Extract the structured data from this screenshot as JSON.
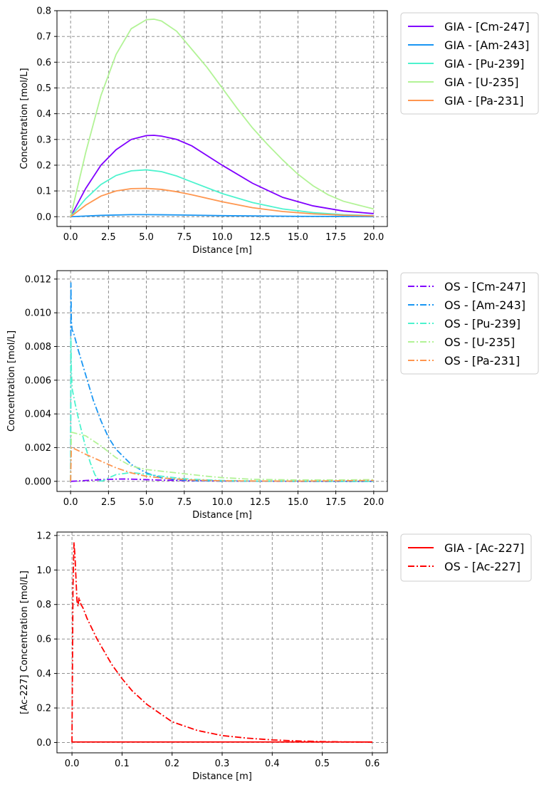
{
  "chart_data": [
    {
      "type": "line",
      "xlabel": "Distance [m]",
      "ylabel": "Concentration [mol/L]",
      "xlim": [
        -0.9,
        20.9
      ],
      "ylim": [
        -0.038,
        0.8
      ],
      "xticks": [
        0,
        2.5,
        5,
        7.5,
        10,
        12.5,
        15,
        17.5,
        20
      ],
      "xtick_labels": [
        "0.0",
        "2.5",
        "5.0",
        "7.5",
        "10.0",
        "12.5",
        "15.0",
        "17.5",
        "20.0"
      ],
      "yticks": [
        0,
        0.1,
        0.2,
        0.3,
        0.4,
        0.5,
        0.6,
        0.7,
        0.8
      ],
      "ytick_labels": [
        "0.0",
        "0.1",
        "0.2",
        "0.3",
        "0.4",
        "0.5",
        "0.6",
        "0.7",
        "0.8"
      ],
      "grid": true,
      "legend_position": "outside-top-right",
      "series": [
        {
          "name": "GIA - [Cm-247]",
          "color": "#8000ff",
          "style": "solid",
          "x": [
            0,
            1,
            2,
            3,
            4,
            5,
            5.5,
            6,
            7,
            8,
            10,
            12,
            14,
            16,
            18,
            20
          ],
          "y": [
            0,
            0.11,
            0.2,
            0.26,
            0.3,
            0.315,
            0.316,
            0.313,
            0.3,
            0.275,
            0.2,
            0.13,
            0.075,
            0.042,
            0.022,
            0.012
          ]
        },
        {
          "name": "GIA - [Am-243]",
          "color": "#1996f3",
          "style": "solid",
          "x": [
            0,
            2,
            4,
            5,
            6,
            8,
            10,
            15,
            20
          ],
          "y": [
            0,
            0.005,
            0.008,
            0.008,
            0.0075,
            0.006,
            0.004,
            0.0015,
            0.0005
          ]
        },
        {
          "name": "GIA - [Pu-239]",
          "color": "#4df3ce",
          "style": "solid",
          "x": [
            0,
            1,
            2,
            3,
            4,
            5,
            6,
            7,
            8,
            10,
            12,
            14,
            16,
            18,
            20
          ],
          "y": [
            0,
            0.07,
            0.125,
            0.16,
            0.178,
            0.182,
            0.175,
            0.158,
            0.135,
            0.09,
            0.055,
            0.03,
            0.016,
            0.008,
            0.004
          ]
        },
        {
          "name": "GIA - [U-235]",
          "color": "#b2f396",
          "style": "solid",
          "x": [
            0,
            1,
            2,
            3,
            4,
            5,
            5.5,
            6,
            7,
            8,
            9,
            10,
            11,
            12,
            13,
            14,
            15,
            16,
            17,
            18,
            19,
            20
          ],
          "y": [
            0,
            0.25,
            0.47,
            0.63,
            0.73,
            0.765,
            0.767,
            0.76,
            0.72,
            0.65,
            0.58,
            0.5,
            0.42,
            0.345,
            0.28,
            0.22,
            0.165,
            0.12,
            0.085,
            0.06,
            0.045,
            0.03
          ]
        },
        {
          "name": "GIA - [Pa-231]",
          "color": "#ff964f",
          "style": "solid",
          "x": [
            0,
            1,
            2,
            3,
            4,
            5,
            6,
            7,
            8,
            10,
            12,
            14,
            16,
            18,
            20
          ],
          "y": [
            0,
            0.045,
            0.08,
            0.1,
            0.109,
            0.11,
            0.106,
            0.097,
            0.085,
            0.058,
            0.035,
            0.02,
            0.011,
            0.006,
            0.003
          ]
        }
      ]
    },
    {
      "type": "line",
      "xlabel": "Distance [m]",
      "ylabel": "Concentration [mol/L]",
      "xlim": [
        -0.9,
        20.9
      ],
      "ylim": [
        -0.0006,
        0.0125
      ],
      "xticks": [
        0,
        2.5,
        5,
        7.5,
        10,
        12.5,
        15,
        17.5,
        20
      ],
      "xtick_labels": [
        "0.0",
        "2.5",
        "5.0",
        "7.5",
        "10.0",
        "12.5",
        "15.0",
        "17.5",
        "20.0"
      ],
      "yticks": [
        0,
        0.002,
        0.004,
        0.006,
        0.008,
        0.01,
        0.012
      ],
      "ytick_labels": [
        "0.000",
        "0.002",
        "0.004",
        "0.006",
        "0.008",
        "0.010",
        "0.012"
      ],
      "grid": true,
      "legend_position": "outside-top-right",
      "series": [
        {
          "name": "OS - [Cm-247]",
          "color": "#8000ff",
          "style": "dashdot",
          "x": [
            0,
            0.5,
            1,
            2,
            3,
            3.5,
            4,
            5,
            6,
            8,
            10,
            12,
            15,
            20
          ],
          "y": [
            0,
            2e-05,
            5e-05,
            0.0001,
            0.00013,
            0.00014,
            0.00013,
            0.0001,
            7e-05,
            4e-05,
            2e-05,
            1e-05,
            0,
            0
          ]
        },
        {
          "name": "OS - [Am-243]",
          "color": "#1996f3",
          "style": "dashdot",
          "x": [
            0,
            0.02,
            0.05,
            0.1,
            0.2,
            0.5,
            1,
            1.5,
            2,
            2.5,
            3,
            4,
            5,
            6,
            7,
            8,
            10,
            15,
            20
          ],
          "y": [
            0,
            0.0118,
            0.0095,
            0.009,
            0.0088,
            0.0078,
            0.0063,
            0.0048,
            0.0036,
            0.0026,
            0.0019,
            0.001,
            0.0005,
            0.0002,
            0.0001,
            5e-05,
            1e-05,
            0,
            0
          ]
        },
        {
          "name": "OS - [Pu-239]",
          "color": "#4df3ce",
          "style": "dashdot",
          "x": [
            0,
            0.02,
            0.05,
            0.1,
            0.3,
            0.5,
            0.8,
            1,
            1.3,
            1.6,
            1.9,
            2.1,
            2.5,
            3,
            4,
            5,
            6,
            7,
            8,
            10,
            12,
            15,
            20
          ],
          "y": [
            0,
            0.0085,
            0.0066,
            0.0055,
            0.0046,
            0.0038,
            0.0027,
            0.002,
            0.0011,
            0.0004,
            2e-05,
            2e-05,
            0.0002,
            0.0004,
            0.00052,
            0.00042,
            0.0003,
            0.0002,
            0.00012,
            5e-05,
            2e-05,
            1e-05,
            0
          ]
        },
        {
          "name": "OS - [U-235]",
          "color": "#b2f396",
          "style": "dashdot",
          "x": [
            0,
            0.05,
            0.1,
            1,
            2,
            3,
            4,
            5,
            6,
            7,
            8,
            9,
            10,
            12,
            15,
            17.5,
            20
          ],
          "y": [
            0,
            0.0029,
            0.0029,
            0.0027,
            0.0021,
            0.0014,
            0.0009,
            0.0007,
            0.0006,
            0.0005,
            0.0004,
            0.0003,
            0.00022,
            0.00012,
            8e-05,
            8e-05,
            0.0001
          ]
        },
        {
          "name": "OS - [Pa-231]",
          "color": "#ff964f",
          "style": "dashdot",
          "x": [
            0,
            0.05,
            0.1,
            1,
            2,
            3,
            4,
            5,
            6,
            8,
            10,
            12,
            15,
            17.5,
            20
          ],
          "y": [
            0,
            0.002,
            0.002,
            0.0016,
            0.0012,
            0.0008,
            0.0005,
            0.0003,
            0.0002,
            8e-05,
            3e-05,
            2e-05,
            1e-05,
            3e-05,
            5e-05
          ]
        }
      ]
    },
    {
      "type": "line",
      "xlabel": "Distance [m]",
      "ylabel": "[Ac-227] Concentration [mol/L]",
      "xlim": [
        -0.03,
        0.63
      ],
      "ylim": [
        -0.06,
        1.22
      ],
      "xticks": [
        0,
        0.1,
        0.2,
        0.3,
        0.4,
        0.5,
        0.6
      ],
      "xtick_labels": [
        "0.0",
        "0.1",
        "0.2",
        "0.3",
        "0.4",
        "0.5",
        "0.6"
      ],
      "yticks": [
        0,
        0.2,
        0.4,
        0.6,
        0.8,
        1.0,
        1.2
      ],
      "ytick_labels": [
        "0.0",
        "0.2",
        "0.4",
        "0.6",
        "0.8",
        "1.0",
        "1.2"
      ],
      "grid": true,
      "legend_position": "outside-top-right",
      "series": [
        {
          "name": "GIA - [Ac-227]",
          "color": "#ff0000",
          "style": "solid",
          "x": [
            0,
            0.6
          ],
          "y": [
            0.003,
            0.003
          ]
        },
        {
          "name": "OS - [Ac-227]",
          "color": "#ff0000",
          "style": "dashdot",
          "x": [
            0,
            0.002,
            0.004,
            0.006,
            0.008,
            0.01,
            0.012,
            0.014,
            0.016,
            0.018,
            0.022,
            0.03,
            0.04,
            0.05,
            0.06,
            0.08,
            0.1,
            0.12,
            0.15,
            0.2,
            0.25,
            0.3,
            0.35,
            0.4,
            0.45,
            0.5,
            0.55,
            0.6
          ],
          "y": [
            0,
            0.9,
            1.16,
            1.08,
            0.95,
            0.82,
            0.79,
            0.84,
            0.82,
            0.8,
            0.78,
            0.72,
            0.66,
            0.6,
            0.55,
            0.45,
            0.37,
            0.3,
            0.22,
            0.12,
            0.07,
            0.04,
            0.025,
            0.015,
            0.009,
            0.005,
            0.003,
            0.002
          ]
        }
      ]
    }
  ]
}
